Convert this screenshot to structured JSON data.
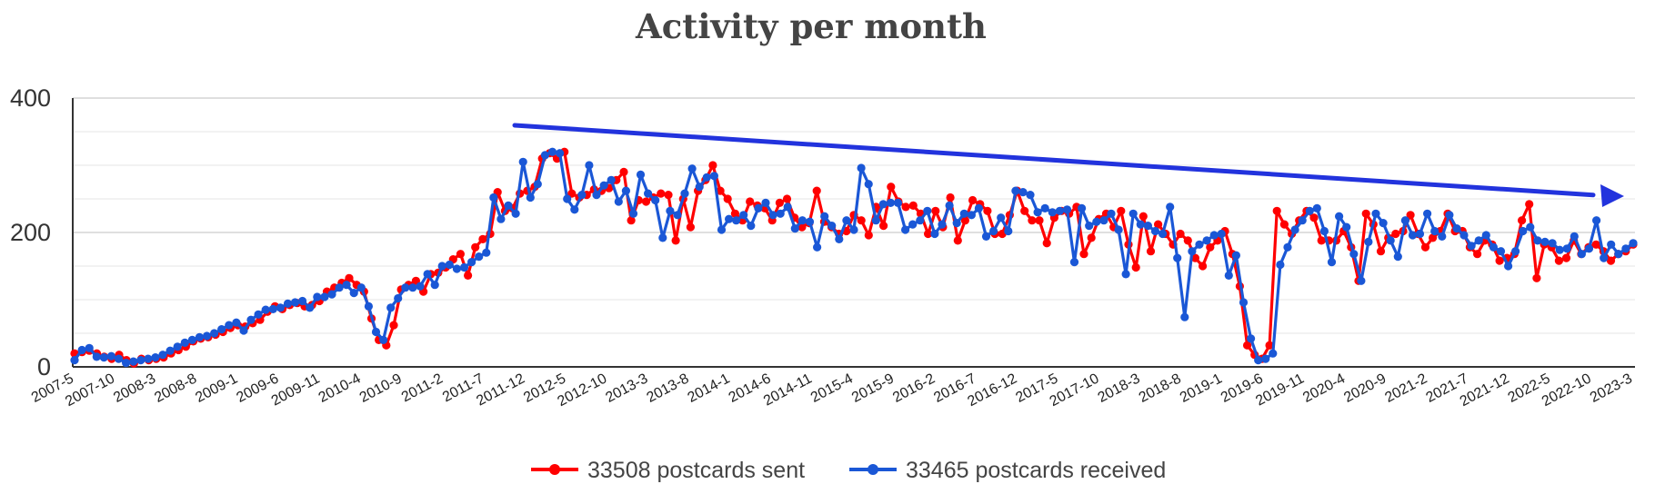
{
  "chart_data": {
    "type": "line",
    "title": "Activity per month",
    "xlabel": "",
    "ylabel": "",
    "ylim": [
      0,
      400
    ],
    "yticks": [
      0,
      200,
      400
    ],
    "x_tick_labels": [
      "2007-5",
      "2007-10",
      "2008-3",
      "2008-8",
      "2009-1",
      "2009-6",
      "2009-11",
      "2010-4",
      "2010-9",
      "2011-2",
      "2011-7",
      "2011-12",
      "2012-5",
      "2012-10",
      "2013-3",
      "2013-8",
      "2014-1",
      "2014-6",
      "2014-11",
      "2015-4",
      "2015-9",
      "2016-2",
      "2016-7",
      "2016-12",
      "2017-5",
      "2017-10",
      "2018-3",
      "2018-8",
      "2019-1",
      "2019-6",
      "2019-11",
      "2020-4",
      "2020-9",
      "2021-2",
      "2021-7",
      "2021-12",
      "2022-5",
      "2022-10",
      "2023-3"
    ],
    "x_start": "2007-5",
    "x_end": "2023-3",
    "series": [
      {
        "name": "33508 postcards sent",
        "color": "#ff0000",
        "values": [
          20,
          22,
          24,
          20,
          15,
          12,
          18,
          10,
          5,
          12,
          10,
          12,
          14,
          20,
          25,
          30,
          38,
          42,
          44,
          48,
          52,
          58,
          62,
          60,
          65,
          70,
          82,
          90,
          86,
          92,
          95,
          90,
          92,
          98,
          112,
          118,
          125,
          132,
          122,
          112,
          72,
          40,
          32,
          62,
          115,
          122,
          128,
          112,
          138,
          140,
          148,
          160,
          168,
          136,
          178,
          190,
          198,
          260,
          232,
          236,
          258,
          262,
          268,
          310,
          318,
          310,
          320,
          258,
          252,
          256,
          264,
          262,
          266,
          278,
          290,
          218,
          248,
          246,
          252,
          258,
          256,
          188,
          250,
          208,
          262,
          278,
          300,
          262,
          250,
          228,
          218,
          246,
          240,
          236,
          218,
          244,
          250,
          222,
          208,
          214,
          262,
          216,
          208,
          198,
          202,
          226,
          218,
          196,
          238,
          210,
          268,
          246,
          238,
          240,
          228,
          198,
          232,
          208,
          252,
          188,
          218,
          248,
          242,
          232,
          198,
          198,
          226,
          262,
          232,
          218,
          218,
          184,
          222,
          232,
          228,
          238,
          168,
          192,
          220,
          228,
          208,
          232,
          182,
          148,
          224,
          172,
          212,
          198,
          182,
          198,
          188,
          162,
          150,
          178,
          188,
          202,
          168,
          120,
          32,
          18,
          12,
          32,
          232,
          212,
          198,
          218,
          232,
          222,
          188,
          188,
          188,
          202,
          178,
          128,
          228,
          212,
          172,
          192,
          198,
          202,
          226,
          198,
          178,
          192,
          202,
          228,
          202,
          202,
          178,
          168,
          188,
          182,
          158,
          162,
          168,
          218,
          242,
          132,
          182,
          178,
          158,
          162,
          188,
          168,
          178,
          182,
          172,
          158,
          168,
          172,
          182
        ]
      },
      {
        "name": "33465 postcards received",
        "color": "#1a57d6",
        "values": [
          10,
          25,
          28,
          15,
          14,
          16,
          12,
          6,
          8,
          10,
          12,
          14,
          18,
          24,
          30,
          36,
          40,
          44,
          46,
          50,
          56,
          62,
          66,
          54,
          70,
          78,
          85,
          86,
          88,
          94,
          96,
          98,
          88,
          104,
          104,
          108,
          118,
          122,
          110,
          118,
          90,
          52,
          40,
          88,
          102,
          118,
          118,
          120,
          138,
          122,
          150,
          152,
          146,
          148,
          156,
          164,
          170,
          252,
          220,
          240,
          228,
          305,
          252,
          272,
          315,
          320,
          318,
          250,
          234,
          256,
          300,
          256,
          270,
          278,
          246,
          262,
          228,
          286,
          258,
          248,
          192,
          232,
          226,
          258,
          295,
          268,
          282,
          284,
          204,
          220,
          218,
          226,
          210,
          236,
          244,
          226,
          228,
          238,
          206,
          218,
          216,
          178,
          224,
          210,
          190,
          218,
          204,
          296,
          272,
          218,
          242,
          244,
          244,
          204,
          212,
          218,
          232,
          198,
          212,
          240,
          214,
          228,
          226,
          236,
          194,
          202,
          222,
          202,
          262,
          260,
          256,
          230,
          236,
          230,
          232,
          234,
          156,
          236,
          210,
          216,
          218,
          228,
          204,
          138,
          228,
          212,
          210,
          202,
          198,
          238,
          162,
          74,
          172,
          182,
          188,
          196,
          198,
          136,
          166,
          96,
          42,
          10,
          12,
          20,
          152,
          178,
          204,
          218,
          232,
          236,
          202,
          156,
          224,
          208,
          168,
          128,
          186,
          228,
          214,
          188,
          164,
          218,
          196,
          198,
          228,
          202,
          194,
          226,
          206,
          196,
          180,
          188,
          196,
          178,
          172,
          150,
          172,
          202,
          208,
          188,
          186,
          184,
          174,
          176,
          194,
          168,
          176,
          218,
          162,
          182,
          168,
          176,
          184
        ]
      }
    ],
    "legend_position": "bottom",
    "grid": true,
    "annotation": "blue arrow showing a downward trend from 2011-12 to 2023-3"
  },
  "colors": {
    "arrow": "#2233dd",
    "title": "#444444"
  }
}
